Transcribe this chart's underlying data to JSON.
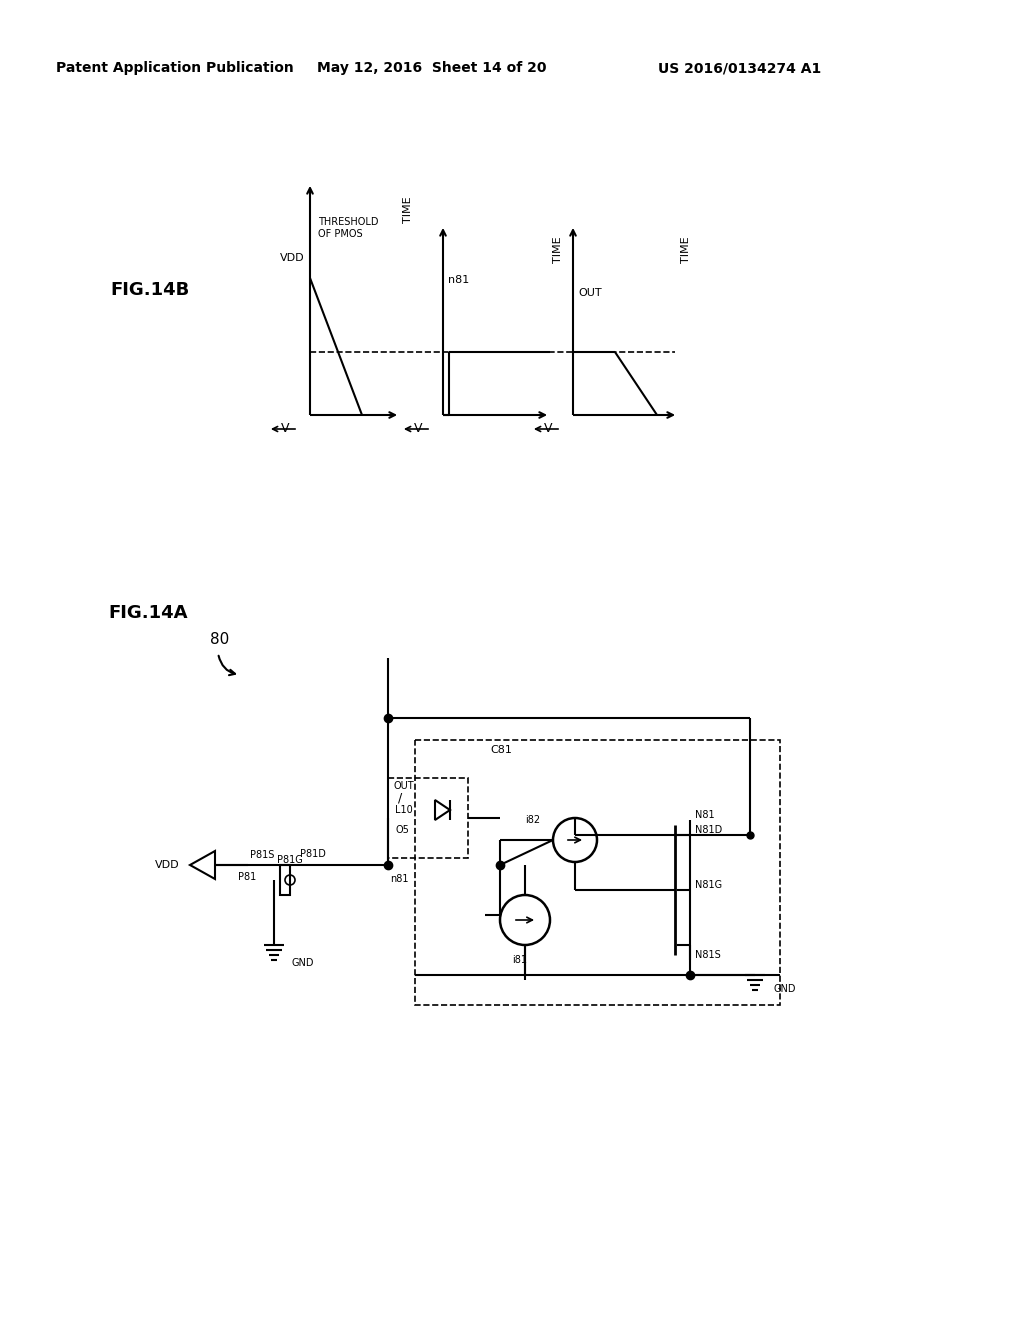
{
  "header_left": "Patent Application Publication",
  "header_center": "May 12, 2016  Sheet 14 of 20",
  "header_right": "US 2016/0134274 A1",
  "fig14b_label": "FIG.14B",
  "fig14a_label": "FIG.14A",
  "bg_color": "#ffffff"
}
